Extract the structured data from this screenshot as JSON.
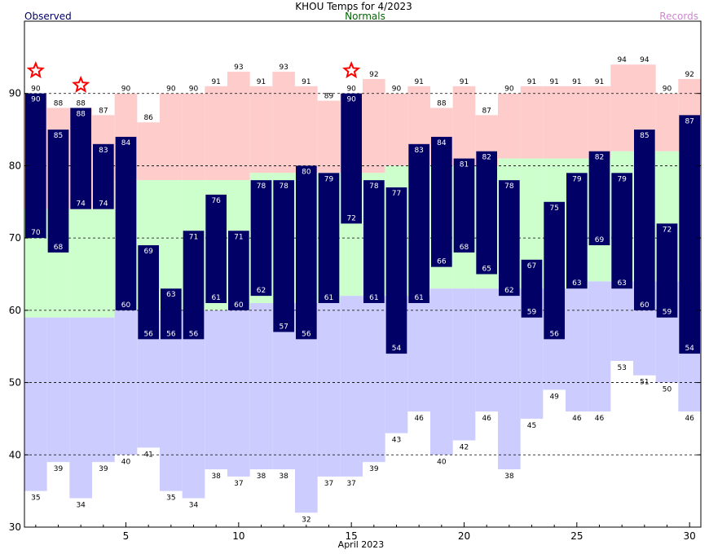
{
  "chart_data": {
    "type": "bar",
    "title": "KHOU Temps for 4/2023",
    "xlabel": "April 2023",
    "ylabel": "",
    "legend": [
      {
        "label": "Observed",
        "color": "#000066"
      },
      {
        "label": "Normals",
        "color": "#006600"
      },
      {
        "label": "Records",
        "color": "#cc88cc"
      }
    ],
    "ylim": [
      30,
      100
    ],
    "xlim": [
      0.5,
      30.5
    ],
    "y_ticks": [
      30,
      40,
      50,
      60,
      70,
      80,
      90
    ],
    "x_ticks": [
      5,
      10,
      15,
      20,
      25,
      30
    ],
    "gridlines_y": [
      40,
      50,
      60,
      70,
      80,
      90
    ],
    "grid_style": "dashed",
    "days": [
      1,
      2,
      3,
      4,
      5,
      6,
      7,
      8,
      9,
      10,
      11,
      12,
      13,
      14,
      15,
      16,
      17,
      18,
      19,
      20,
      21,
      22,
      23,
      24,
      25,
      26,
      27,
      28,
      29,
      30
    ],
    "series": [
      {
        "name": "Observed",
        "role": "observed_high",
        "values": [
          90,
          85,
          88,
          83,
          84,
          69,
          63,
          71,
          76,
          71,
          78,
          78,
          80,
          79,
          90,
          78,
          77,
          83,
          84,
          81,
          82,
          78,
          67,
          75,
          79,
          82,
          79,
          85,
          72,
          87
        ]
      },
      {
        "name": "Observed",
        "role": "observed_low",
        "values": [
          70,
          68,
          74,
          74,
          60,
          56,
          56,
          56,
          61,
          60,
          62,
          57,
          56,
          61,
          72,
          61,
          54,
          61,
          66,
          68,
          65,
          62,
          59,
          56,
          63,
          69,
          63,
          60,
          59,
          54
        ]
      },
      {
        "name": "Records",
        "role": "record_high",
        "values": [
          90,
          88,
          88,
          87,
          90,
          86,
          90,
          90,
          91,
          93,
          91,
          93,
          91,
          89,
          90,
          92,
          90,
          91,
          88,
          91,
          87,
          90,
          91,
          91,
          91,
          91,
          94,
          94,
          90,
          92
        ]
      },
      {
        "name": "Records",
        "role": "record_low",
        "values": [
          35,
          39,
          34,
          39,
          40,
          41,
          35,
          34,
          38,
          37,
          38,
          38,
          32,
          37,
          37,
          39,
          43,
          46,
          40,
          42,
          46,
          38,
          45,
          49,
          46,
          46,
          53,
          51,
          50,
          46
        ]
      },
      {
        "name": "Normals",
        "role": "normal_high",
        "values": [
          74,
          74,
          74,
          74,
          78,
          78,
          78,
          78,
          78,
          78,
          79,
          79,
          79,
          79,
          79,
          79,
          80,
          80,
          80,
          80,
          80,
          81,
          81,
          81,
          81,
          81,
          82,
          82,
          82,
          82
        ]
      },
      {
        "name": "Normals",
        "role": "normal_low",
        "values": [
          59,
          59,
          59,
          59,
          60,
          60,
          60,
          60,
          60,
          60,
          61,
          61,
          61,
          61,
          62,
          62,
          62,
          62,
          63,
          63,
          63,
          63,
          63,
          63,
          63,
          64,
          64,
          64,
          64,
          64
        ]
      }
    ],
    "record_high_days": [
      1,
      3,
      15
    ],
    "colors": {
      "observed_bar": "#000066",
      "observed_label": "#ffffff",
      "record_high_fill": "#ffcccc",
      "normal_fill": "#ccffcc",
      "record_low_fill": "#ccccff",
      "record_star": "#ff0000",
      "title": "#000000",
      "normals_text": "#006600",
      "records_text": "#cc88cc",
      "observed_text": "#000066"
    }
  }
}
